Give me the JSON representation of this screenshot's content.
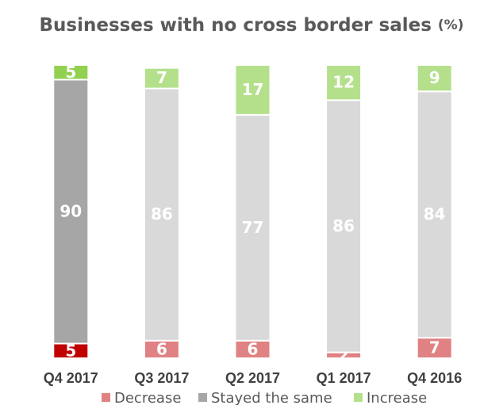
{
  "chart_data": {
    "type": "stacked_bar",
    "title": "Businesses with no cross border sales",
    "unit": "(%)",
    "categories": [
      "Q4 2017",
      "Q3 2017",
      "Q2 2017",
      "Q1 2017",
      "Q4 2016"
    ],
    "series": [
      {
        "name": "Decrease",
        "color": "#e08283",
        "highlight_color": "#c00000",
        "values": [
          5,
          6,
          6,
          2,
          7
        ]
      },
      {
        "name": "Stayed the same",
        "color": "#d9d9d9",
        "highlight_color": "#a6a6a6",
        "values": [
          90,
          86,
          77,
          86,
          84
        ]
      },
      {
        "name": "Increase",
        "color": "#b4e08c",
        "highlight_color": "#92d050",
        "values": [
          5,
          7,
          17,
          12,
          9
        ]
      }
    ],
    "highlight_index": 0,
    "legend_color": "#a6a6a6",
    "ylim": [
      0,
      100
    ]
  }
}
